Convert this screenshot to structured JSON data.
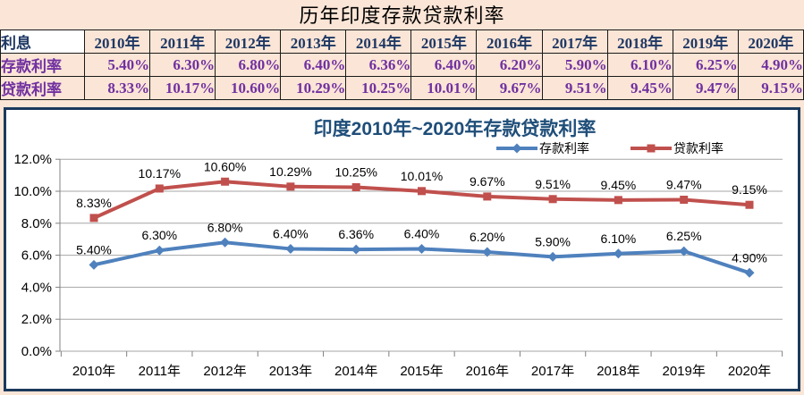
{
  "title": "历年印度存款贷款利率",
  "table": {
    "corner_label": "利息",
    "years": [
      "2010年",
      "2011年",
      "2012年",
      "2013年",
      "2014年",
      "2015年",
      "2016年",
      "2017年",
      "2018年",
      "2019年",
      "2020年"
    ],
    "rows": [
      {
        "label": "存款利率",
        "values": [
          "5.40%",
          "6.30%",
          "6.80%",
          "6.40%",
          "6.36%",
          "6.40%",
          "6.20%",
          "5.90%",
          "6.10%",
          "6.25%",
          "4.90%"
        ]
      },
      {
        "label": "贷款利率",
        "values": [
          "8.33%",
          "10.17%",
          "10.60%",
          "10.29%",
          "10.25%",
          "10.01%",
          "9.67%",
          "9.51%",
          "9.45%",
          "9.47%",
          "9.15%"
        ]
      }
    ]
  },
  "chart_data": {
    "type": "line",
    "title": "印度2010年~2020年存款贷款利率",
    "categories": [
      "2010年",
      "2011年",
      "2012年",
      "2013年",
      "2014年",
      "2015年",
      "2016年",
      "2017年",
      "2018年",
      "2019年",
      "2020年"
    ],
    "series": [
      {
        "name": "存款利率",
        "marker": "diamond",
        "color": "#4f81bd",
        "values": [
          5.4,
          6.3,
          6.8,
          6.4,
          6.36,
          6.4,
          6.2,
          5.9,
          6.1,
          6.25,
          4.9
        ]
      },
      {
        "name": "贷款利率",
        "marker": "square",
        "color": "#c0504d",
        "values": [
          8.33,
          10.17,
          10.6,
          10.29,
          10.25,
          10.01,
          9.67,
          9.51,
          9.45,
          9.47,
          9.15
        ]
      }
    ],
    "ylim": [
      0,
      12
    ],
    "ytick_labels": [
      "0.0%",
      "2.0%",
      "4.0%",
      "6.0%",
      "8.0%",
      "10.0%",
      "12.0%"
    ],
    "grid": true,
    "legend_position": "top-right",
    "data_labels": "percent-2dp"
  },
  "colors": {
    "page_bg": "#fbe5d6",
    "table_header_text": "#1f3864",
    "table_value_text": "#7030a0",
    "table_border": "#1a1a1a",
    "chart_border": "#1b3a5c",
    "chart_title_text": "#1f4e79",
    "deposit_series": "#4f81bd",
    "loan_series": "#c0504d",
    "gridline": "#a6a6a6",
    "axis_line": "#808080",
    "label_text": "#000000"
  }
}
